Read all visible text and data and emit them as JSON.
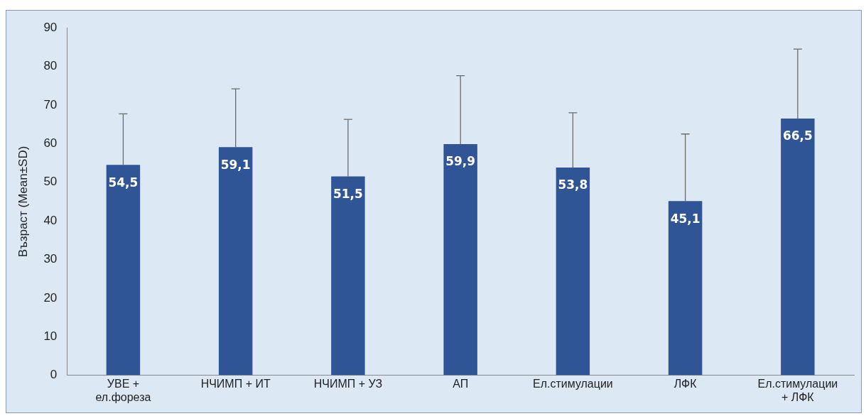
{
  "chart_data": {
    "type": "bar",
    "ylabel": "Възраст (Mean±SD)",
    "categories": [
      "УВЕ + ел.фореза",
      "НЧИМП + ИТ",
      "НЧИМП + УЗ",
      "АП",
      "Ел.стимулации",
      "ЛФК",
      "Ел.стимулации + ЛФК"
    ],
    "values": [
      54.5,
      59.1,
      51.5,
      59.9,
      53.8,
      45.1,
      66.5
    ],
    "value_labels": [
      "54,5",
      "59,1",
      "51,5",
      "59,9",
      "53,8",
      "45,1",
      "66,5"
    ],
    "errors": [
      [
        54.5,
        67.7
      ],
      [
        59.1,
        74.2
      ],
      [
        51.5,
        66.3
      ],
      [
        59.9,
        77.6
      ],
      [
        53.8,
        68.0
      ],
      [
        45.1,
        62.5
      ],
      [
        66.5,
        84.5
      ]
    ],
    "color": "#2f5597",
    "ylim": [
      0,
      90
    ],
    "yticks": [
      0,
      10,
      20,
      30,
      40,
      50,
      60,
      70,
      80,
      90
    ],
    "grid": false,
    "legend": false
  }
}
